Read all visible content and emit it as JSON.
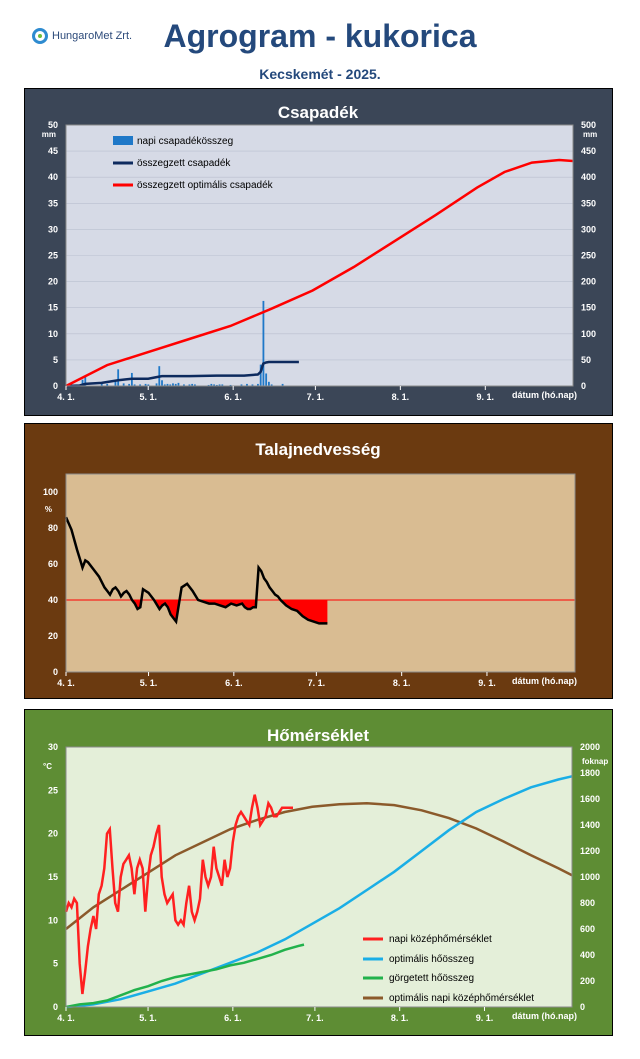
{
  "header": {
    "logo_text": "HungaroMet Zrt.",
    "title": "Agrogram - kukorica",
    "subtitle": "Kecskemét - 2025."
  },
  "x_axis": {
    "tick_labels": [
      "4. 1.",
      "5. 1.",
      "6. 1.",
      "7. 1.",
      "8. 1.",
      "9. 1."
    ],
    "label": "dátum (hó.nap)"
  },
  "chart_data": [
    {
      "type": "bar",
      "title": "Csapadék",
      "ylabel_left": "mm",
      "ylabel_right": "mm",
      "ylim_left": [
        0,
        50
      ],
      "ylim_right": [
        0,
        500
      ],
      "yticks_left": [
        0,
        5,
        10,
        15,
        20,
        25,
        30,
        35,
        40,
        45,
        50
      ],
      "yticks_right": [
        0,
        50,
        100,
        150,
        200,
        250,
        300,
        350,
        400,
        450,
        500
      ],
      "xlim_days": [
        0,
        185
      ],
      "legend": "top-left",
      "colors": {
        "bars": "#1f78c8",
        "cumulative": "#0d2a5e",
        "optimal": "#ff0000",
        "plot_bg": "#d6dae6"
      },
      "series": [
        {
          "name": "napi csapadékösszeg",
          "axis": "left",
          "days": [
            6,
            7,
            13,
            15,
            18,
            19,
            21,
            23,
            24,
            25,
            27,
            29,
            30,
            33,
            34,
            35,
            36,
            37,
            38,
            39,
            40,
            41,
            43,
            45,
            46,
            47,
            52,
            53,
            54,
            55,
            56,
            57,
            60,
            64,
            66,
            68,
            70,
            71,
            72,
            73,
            74,
            75,
            79
          ],
          "values": [
            1.2,
            1.8,
            0.6,
            0.4,
            0.9,
            3.2,
            0.5,
            0.4,
            2.5,
            0.3,
            0.3,
            0.4,
            0.3,
            0.5,
            3.8,
            1.1,
            0.3,
            0.4,
            0.3,
            0.5,
            0.4,
            0.6,
            0.3,
            0.3,
            0.4,
            0.3,
            0.2,
            0.4,
            0.3,
            0.2,
            0.3,
            0.3,
            0.2,
            0.3,
            0.4,
            0.3,
            0.4,
            4.1,
            16.3,
            2.4,
            0.8,
            0.3,
            0.4
          ]
        },
        {
          "name": "összegzett csapadék",
          "axis": "right",
          "days": [
            0,
            5,
            7,
            13,
            19,
            24,
            30,
            34,
            35,
            40,
            45,
            55,
            65,
            70,
            71,
            72,
            73,
            74,
            75,
            80,
            85
          ],
          "values": [
            0,
            1,
            4,
            6,
            11,
            14,
            14,
            18,
            19,
            19,
            19,
            20,
            20,
            22,
            27,
            43,
            45,
            46,
            46,
            46,
            46
          ]
        },
        {
          "name": "összegzett optimális csapadék",
          "axis": "right",
          "days": [
            0,
            15,
            30,
            45,
            60,
            75,
            90,
            105,
            120,
            135,
            150,
            160,
            170,
            180,
            185
          ],
          "values": [
            0,
            40,
            65,
            90,
            115,
            148,
            183,
            228,
            278,
            328,
            380,
            410,
            428,
            433,
            431
          ]
        }
      ]
    },
    {
      "type": "line",
      "title": "Talajnedvesség",
      "ylabel": "%",
      "ylim": [
        0,
        110
      ],
      "yticks": [
        0,
        20,
        40,
        60,
        80,
        100
      ],
      "xlim_days": [
        0,
        185
      ],
      "threshold": 40,
      "colors": {
        "line": "#000000",
        "threshold": "#ff0000",
        "deficit_fill": "#ff0000",
        "plot_bg": "#d9bc92"
      },
      "series": [
        {
          "name": "talajnedvesség",
          "days": [
            0,
            2,
            4,
            5,
            6,
            7,
            8,
            10,
            12,
            14,
            15,
            16,
            17,
            18,
            19,
            20,
            21,
            22,
            23,
            24,
            25,
            26,
            27,
            28,
            30,
            32,
            34,
            35,
            36,
            37,
            38,
            40,
            42,
            44,
            46,
            48,
            50,
            52,
            54,
            56,
            58,
            60,
            62,
            64,
            65,
            66,
            67,
            68,
            69,
            70,
            71,
            72,
            73,
            74,
            75,
            76,
            77,
            78,
            80,
            82,
            84,
            86,
            88,
            90,
            92,
            94,
            95
          ],
          "values": [
            86,
            79,
            68,
            63,
            58,
            62,
            61,
            57,
            53,
            47,
            45,
            43,
            46,
            47,
            45,
            42,
            44,
            45,
            43,
            40,
            38,
            35,
            36,
            46,
            44,
            40,
            35,
            37,
            38,
            36,
            32,
            28,
            47,
            49,
            45,
            40,
            39,
            38,
            38,
            37,
            36,
            38,
            37,
            38,
            36,
            35,
            35,
            36,
            36,
            58,
            56,
            52,
            50,
            47,
            45,
            43,
            42,
            40,
            37,
            35,
            34,
            31,
            29,
            28,
            27,
            27,
            27
          ]
        }
      ]
    },
    {
      "type": "line",
      "title": "Hőmérséklet",
      "ylabel_left": "°C",
      "ylabel_right": "foknap",
      "ylim_left": [
        0,
        30
      ],
      "ylim_right": [
        0,
        2000
      ],
      "yticks_left": [
        0,
        5,
        10,
        15,
        20,
        25,
        30
      ],
      "yticks_right": [
        0,
        200,
        400,
        600,
        800,
        1000,
        1200,
        1400,
        1600,
        1800,
        2000
      ],
      "xlim_days": [
        0,
        185
      ],
      "legend": "bottom-right",
      "colors": {
        "daily": "#ff2020",
        "optimal_sum": "#1aaee6",
        "rolling_sum": "#22b24c",
        "optimal_daily": "#8b5a2b",
        "plot_bg": "#e4efd9"
      },
      "series": [
        {
          "name": "napi középhőmérséklet",
          "axis": "left",
          "days": [
            0,
            1,
            2,
            3,
            4,
            5,
            6,
            7,
            8,
            9,
            10,
            11,
            12,
            13,
            14,
            15,
            16,
            17,
            18,
            19,
            20,
            21,
            22,
            23,
            24,
            25,
            26,
            27,
            28,
            29,
            30,
            31,
            32,
            33,
            34,
            35,
            36,
            37,
            38,
            39,
            40,
            41,
            42,
            43,
            44,
            45,
            46,
            47,
            48,
            49,
            50,
            51,
            52,
            53,
            54,
            55,
            56,
            57,
            58,
            59,
            60,
            61,
            62,
            63,
            64,
            65,
            66,
            67,
            68,
            69,
            70,
            71,
            72,
            73,
            74,
            75,
            76,
            77,
            78,
            79,
            80,
            81,
            82,
            83
          ],
          "values": [
            11,
            12,
            11.5,
            12.5,
            12,
            5,
            1.5,
            4,
            7,
            9,
            10.5,
            9,
            13,
            14,
            16,
            20,
            20.5,
            16,
            12,
            11,
            15,
            16.5,
            17,
            17.5,
            16,
            13,
            16,
            17,
            16,
            11,
            15,
            17.5,
            18.5,
            20,
            21,
            15,
            13,
            12,
            12.5,
            13,
            10,
            9.5,
            10,
            9.5,
            12,
            14,
            11,
            10,
            11,
            12.5,
            17,
            15,
            14,
            15,
            18.5,
            16,
            15,
            14,
            17,
            15,
            16,
            19,
            21,
            22,
            22.5,
            22,
            21.5,
            21,
            23,
            24.5,
            23,
            21,
            21.5,
            22,
            23.5,
            23,
            22,
            22,
            22.5,
            23,
            23,
            23,
            23,
            23
          ]
        },
        {
          "name": "optimális hőösszeg",
          "axis": "right",
          "days": [
            0,
            10,
            20,
            30,
            40,
            50,
            60,
            70,
            80,
            90,
            100,
            110,
            120,
            130,
            140,
            150,
            160,
            170,
            180,
            185
          ],
          "values": [
            0,
            20,
            60,
            120,
            180,
            260,
            340,
            420,
            520,
            640,
            760,
            900,
            1040,
            1200,
            1360,
            1500,
            1600,
            1690,
            1750,
            1775
          ]
        },
        {
          "name": "görgetett hőösszeg",
          "axis": "right",
          "days": [
            0,
            5,
            10,
            15,
            20,
            25,
            30,
            35,
            40,
            45,
            50,
            55,
            60,
            65,
            70,
            75,
            80,
            85,
            87
          ],
          "values": [
            0,
            20,
            30,
            50,
            90,
            130,
            160,
            200,
            230,
            250,
            270,
            290,
            320,
            340,
            370,
            400,
            440,
            470,
            480
          ]
        },
        {
          "name": "optimális napi középhőmérséklet",
          "axis": "left",
          "days": [
            0,
            10,
            20,
            30,
            40,
            50,
            60,
            70,
            80,
            90,
            100,
            110,
            120,
            130,
            140,
            150,
            160,
            170,
            180,
            185
          ],
          "values": [
            9,
            11.5,
            13.5,
            15.5,
            17.5,
            19,
            20.5,
            21.6,
            22.5,
            23.1,
            23.4,
            23.5,
            23.3,
            22.7,
            21.8,
            20.6,
            19.1,
            17.5,
            16,
            15.2
          ]
        }
      ]
    }
  ]
}
